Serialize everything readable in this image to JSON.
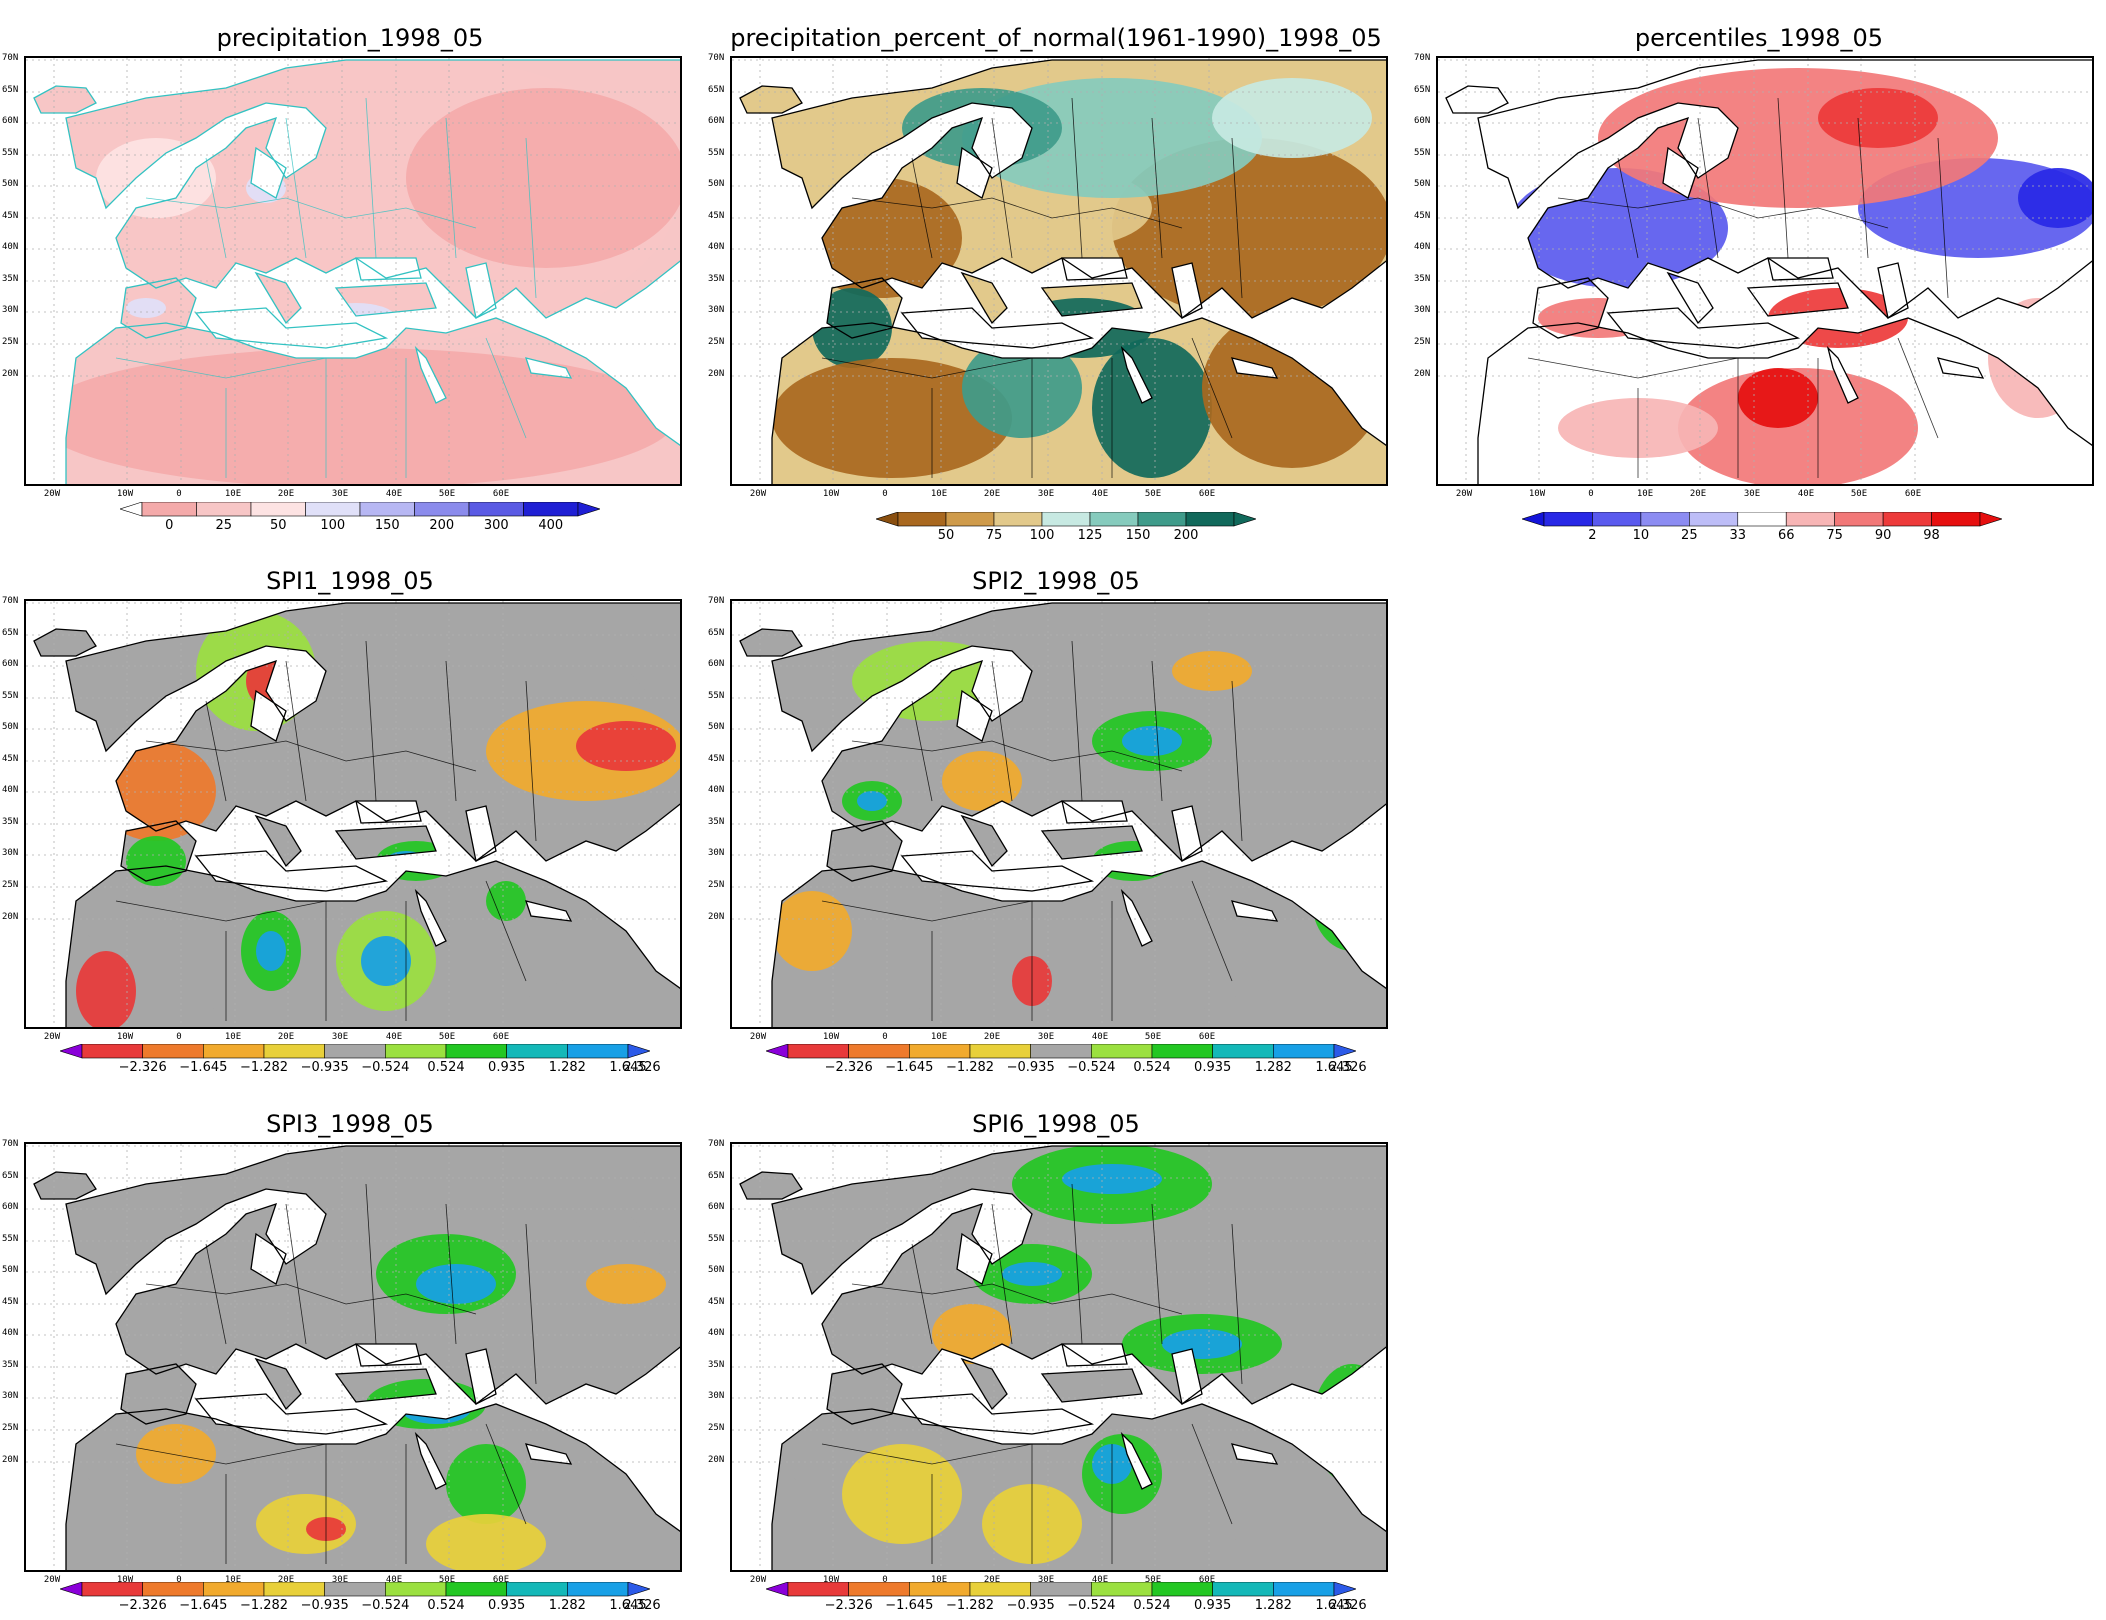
{
  "panels": [
    {
      "id": "precip",
      "title": "precipitation_1998_05",
      "palette": "precip",
      "colorbar": {
        "labels": [
          "0",
          "25",
          "50",
          "100",
          "150",
          "200",
          "300",
          "400"
        ],
        "colors": [
          "#f4aaaa",
          "#f7c6c6",
          "#fde3e3",
          "#e0e0f8",
          "#b7b7f3",
          "#8b8bec",
          "#5a5ae4",
          "#1f1fd4"
        ],
        "left_arrow": "#ffffff",
        "right_arrow": "#1f1fd4"
      }
    },
    {
      "id": "pct-normal",
      "title": "precipitation_percent_of_normal(1961-1990)_1998_05",
      "palette": "pct",
      "colorbar": {
        "labels": [
          "50",
          "75",
          "100",
          "125",
          "150",
          "200"
        ],
        "colors": [
          "#a9681f",
          "#cf9b4b",
          "#e2c98b",
          "#c7e9e2",
          "#86cbbd",
          "#3f9b8a",
          "#11695b"
        ],
        "left_arrow": "#8a4f0f",
        "right_arrow": "#11695b"
      }
    },
    {
      "id": "percentiles",
      "title": "percentiles_1998_05",
      "palette": "pctl",
      "colorbar": {
        "labels": [
          "2",
          "10",
          "25",
          "33",
          "66",
          "75",
          "90",
          "98"
        ],
        "colors": [
          "#2828e6",
          "#5a5aee",
          "#8c8cf2",
          "#bdbdf7",
          "#ffffff",
          "#f7b5b5",
          "#f27878",
          "#ed3a3a",
          "#e60f0f"
        ],
        "left_arrow": "#1414d9",
        "right_arrow": "#e60f0f"
      }
    },
    {
      "id": "spi1",
      "title": "SPI1_1998_05",
      "palette": "spi"
    },
    {
      "id": "spi2",
      "title": "SPI2_1998_05",
      "palette": "spi"
    },
    {
      "id": "spi3",
      "title": "SPI3_1998_05",
      "palette": "spi"
    },
    {
      "id": "spi6",
      "title": "SPI6_1998_05",
      "palette": "spi"
    }
  ],
  "spi_colorbar": {
    "labels": [
      "−2.326",
      "−1.645",
      "−1.282",
      "−0.935",
      "−0.524",
      "0.524",
      "0.935",
      "1.282",
      "1.645",
      "2.326"
    ],
    "colors": [
      "#e83a3a",
      "#ee7a2c",
      "#f1aa2e",
      "#e8d03a",
      "#a6a6a6",
      "#9be040",
      "#23c723",
      "#14b8b8",
      "#18a0e6"
    ],
    "left_arrow": "#8a00d9",
    "right_arrow": "#2c5ae8"
  },
  "lat_labels": [
    "70N",
    "65N",
    "60N",
    "55N",
    "50N",
    "45N",
    "40N",
    "35N",
    "30N",
    "25N",
    "20N"
  ],
  "lon_labels": [
    "20W",
    "10W",
    "0",
    "10E",
    "20E",
    "30E",
    "40E",
    "50E",
    "60E"
  ],
  "colors": {
    "spi_gray": "#a6a6a6",
    "land_outline_spi": "#000000",
    "land_outline_precip": "#33c2c2"
  }
}
